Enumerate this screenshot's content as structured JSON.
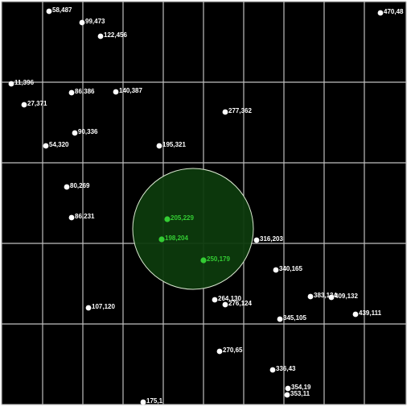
{
  "colors": {
    "background": "#000000",
    "grid": "#bfbfbf",
    "point": "#ffffff",
    "label": "#ffffff",
    "highlight_point": "#33cc33",
    "highlight_label": "#33cc33",
    "circle_fill": "#0d3a0d",
    "circle_stroke": "#d9e8d0"
  },
  "points": [
    {
      "label": "58,487",
      "highlighted": false
    },
    {
      "label": "99,473",
      "highlighted": false
    },
    {
      "label": "122,456",
      "highlighted": false
    },
    {
      "label": "470,48",
      "highlighted": false
    },
    {
      "label": "11,396",
      "highlighted": false
    },
    {
      "label": "86,386",
      "highlighted": false
    },
    {
      "label": "140,387",
      "highlighted": false
    },
    {
      "label": "27,371",
      "highlighted": false
    },
    {
      "label": "277,362",
      "highlighted": false
    },
    {
      "label": "90,336",
      "highlighted": false
    },
    {
      "label": "54,320",
      "highlighted": false
    },
    {
      "label": "195,321",
      "highlighted": false
    },
    {
      "label": "80,269",
      "highlighted": false
    },
    {
      "label": "86,231",
      "highlighted": false
    },
    {
      "label": "205,229",
      "highlighted": true
    },
    {
      "label": "198,204",
      "highlighted": true
    },
    {
      "label": "316,203",
      "highlighted": false
    },
    {
      "label": "250,179",
      "highlighted": true
    },
    {
      "label": "340,165",
      "highlighted": false
    },
    {
      "label": "383,134",
      "highlighted": false
    },
    {
      "label": "409,132",
      "highlighted": false
    },
    {
      "label": "107,120",
      "highlighted": false
    },
    {
      "label": "264,130",
      "highlighted": false
    },
    {
      "label": "276,124",
      "highlighted": false
    },
    {
      "label": "439,111",
      "highlighted": false
    },
    {
      "label": "345,105",
      "highlighted": false
    },
    {
      "label": "270,65",
      "highlighted": false
    },
    {
      "label": "336,43",
      "highlighted": false
    },
    {
      "label": "354,19",
      "highlighted": false
    },
    {
      "label": "353,11",
      "highlighted": false
    },
    {
      "label": "175,1",
      "highlighted": false
    }
  ]
}
